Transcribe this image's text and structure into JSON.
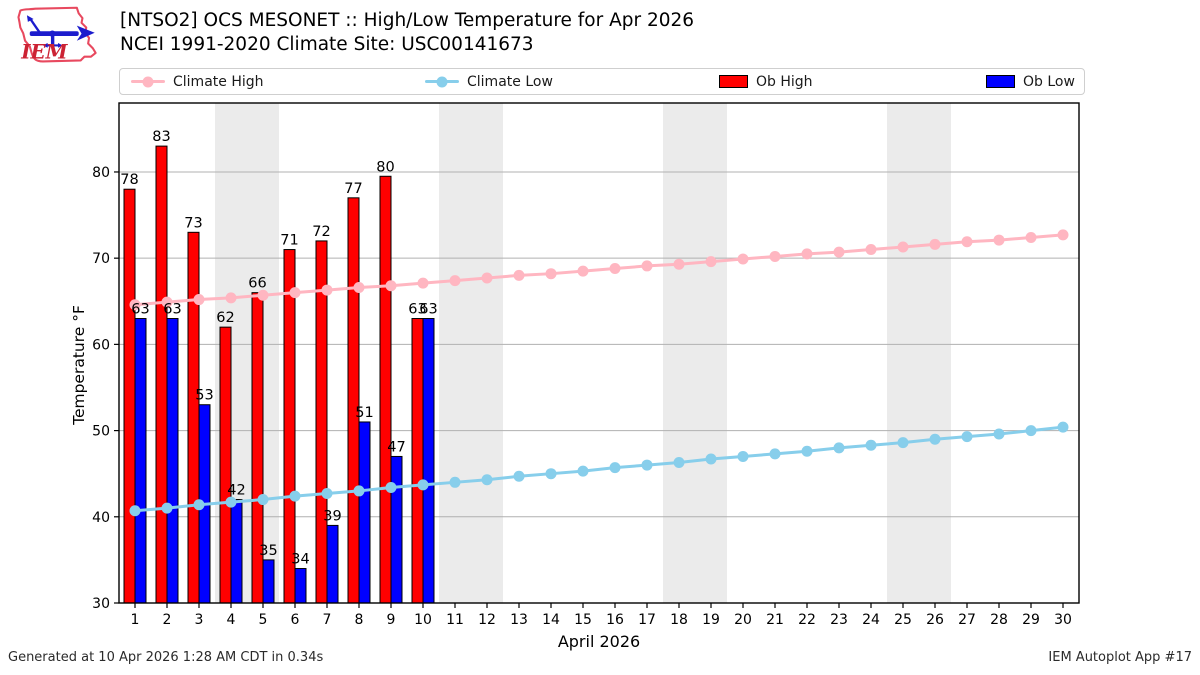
{
  "header": {
    "title_line1": "[NTSO2] OCS MESONET :: High/Low Temperature for Apr 2026",
    "title_line2": "NCEI 1991-2020 Climate Site: USC00141673",
    "logo_text": "IEM"
  },
  "legend": {
    "items": [
      {
        "label": "Climate High",
        "type": "line",
        "color": "#ffb6c1"
      },
      {
        "label": "Climate Low",
        "type": "line",
        "color": "#87ceeb"
      },
      {
        "label": "Ob High",
        "type": "patch",
        "color": "#ff0000"
      },
      {
        "label": "Ob Low",
        "type": "patch",
        "color": "#0000ff"
      }
    ]
  },
  "chart_data": {
    "type": "bar",
    "title": "",
    "xlabel": "April 2026",
    "ylabel": "Temperature °F",
    "xlim": [
      0.5,
      30.5
    ],
    "ylim": [
      30,
      88
    ],
    "yticks": [
      30,
      40,
      50,
      60,
      70,
      80
    ],
    "xticks": [
      1,
      2,
      3,
      4,
      5,
      6,
      7,
      8,
      9,
      10,
      11,
      12,
      13,
      14,
      15,
      16,
      17,
      18,
      19,
      20,
      21,
      22,
      23,
      24,
      25,
      26,
      27,
      28,
      29,
      30
    ],
    "grid": true,
    "weekend_bands": [
      [
        4,
        5
      ],
      [
        11,
        12
      ],
      [
        18,
        19
      ],
      [
        25,
        26
      ]
    ],
    "band_color": "#ebebeb",
    "grid_color": "#b0b0b0",
    "series": [
      {
        "name": "Climate High",
        "type": "line",
        "color": "#ffb6c1",
        "x": [
          1,
          2,
          3,
          4,
          5,
          6,
          7,
          8,
          9,
          10,
          11,
          12,
          13,
          14,
          15,
          16,
          17,
          18,
          19,
          20,
          21,
          22,
          23,
          24,
          25,
          26,
          27,
          28,
          29,
          30
        ],
        "values": [
          64.6,
          64.9,
          65.2,
          65.4,
          65.7,
          66.0,
          66.3,
          66.6,
          66.8,
          67.1,
          67.4,
          67.7,
          68.0,
          68.2,
          68.5,
          68.8,
          69.1,
          69.3,
          69.6,
          69.9,
          70.2,
          70.5,
          70.7,
          71.0,
          71.3,
          71.6,
          71.9,
          72.1,
          72.4,
          72.7
        ]
      },
      {
        "name": "Climate Low",
        "type": "line",
        "color": "#87ceeb",
        "x": [
          1,
          2,
          3,
          4,
          5,
          6,
          7,
          8,
          9,
          10,
          11,
          12,
          13,
          14,
          15,
          16,
          17,
          18,
          19,
          20,
          21,
          22,
          23,
          24,
          25,
          26,
          27,
          28,
          29,
          30
        ],
        "values": [
          40.7,
          41.0,
          41.4,
          41.7,
          42.0,
          42.4,
          42.7,
          43.0,
          43.4,
          43.7,
          44.0,
          44.3,
          44.7,
          45.0,
          45.3,
          45.7,
          46.0,
          46.3,
          46.7,
          47.0,
          47.3,
          47.6,
          48.0,
          48.3,
          48.6,
          49.0,
          49.3,
          49.6,
          50.0,
          50.4
        ]
      },
      {
        "name": "Ob High",
        "type": "bar",
        "color": "#ff0000",
        "side": "left",
        "x": [
          1,
          2,
          3,
          4,
          5,
          6,
          7,
          8,
          9,
          10
        ],
        "values": [
          78,
          83,
          73,
          62,
          66,
          71,
          72,
          77,
          79.5,
          63
        ],
        "labels": [
          "78",
          "83",
          "73",
          "62",
          "66",
          "71",
          "72",
          "77",
          "80",
          "63"
        ]
      },
      {
        "name": "Ob Low",
        "type": "bar",
        "color": "#0000ff",
        "side": "right",
        "x": [
          1,
          2,
          3,
          4,
          5,
          6,
          7,
          8,
          9,
          10
        ],
        "values": [
          63,
          63,
          53,
          42,
          35,
          34,
          39,
          51,
          47,
          63
        ],
        "labels": [
          "63",
          "63",
          "53",
          "42",
          "35",
          "34",
          "39",
          "51",
          "47",
          "63"
        ]
      }
    ]
  },
  "footer": {
    "left": "Generated at 10 Apr 2026 1:28 AM CDT in 0.34s",
    "right": "IEM Autoplot App #17"
  }
}
